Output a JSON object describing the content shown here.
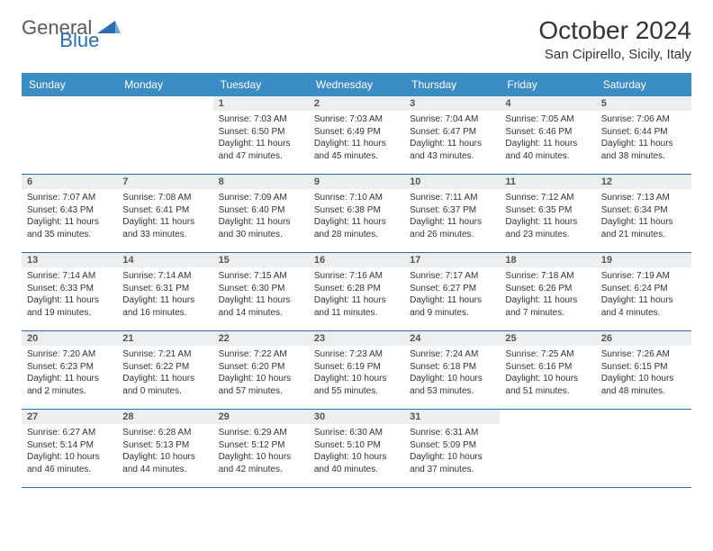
{
  "logo": {
    "text1": "General",
    "text2": "Blue"
  },
  "title": "October 2024",
  "location": "San Cipirello, Sicily, Italy",
  "colors": {
    "header_bg": "#3b8bc4",
    "header_text": "#ffffff",
    "daynum_bg": "#eceeef",
    "week_border": "#2a6db0",
    "logo_gray": "#5a5a5a",
    "logo_blue": "#2a6db0"
  },
  "day_names": [
    "Sunday",
    "Monday",
    "Tuesday",
    "Wednesday",
    "Thursday",
    "Friday",
    "Saturday"
  ],
  "weeks": [
    [
      null,
      null,
      {
        "n": "1",
        "sr": "7:03 AM",
        "ss": "6:50 PM",
        "dl": "11 hours and 47 minutes."
      },
      {
        "n": "2",
        "sr": "7:03 AM",
        "ss": "6:49 PM",
        "dl": "11 hours and 45 minutes."
      },
      {
        "n": "3",
        "sr": "7:04 AM",
        "ss": "6:47 PM",
        "dl": "11 hours and 43 minutes."
      },
      {
        "n": "4",
        "sr": "7:05 AM",
        "ss": "6:46 PM",
        "dl": "11 hours and 40 minutes."
      },
      {
        "n": "5",
        "sr": "7:06 AM",
        "ss": "6:44 PM",
        "dl": "11 hours and 38 minutes."
      }
    ],
    [
      {
        "n": "6",
        "sr": "7:07 AM",
        "ss": "6:43 PM",
        "dl": "11 hours and 35 minutes."
      },
      {
        "n": "7",
        "sr": "7:08 AM",
        "ss": "6:41 PM",
        "dl": "11 hours and 33 minutes."
      },
      {
        "n": "8",
        "sr": "7:09 AM",
        "ss": "6:40 PM",
        "dl": "11 hours and 30 minutes."
      },
      {
        "n": "9",
        "sr": "7:10 AM",
        "ss": "6:38 PM",
        "dl": "11 hours and 28 minutes."
      },
      {
        "n": "10",
        "sr": "7:11 AM",
        "ss": "6:37 PM",
        "dl": "11 hours and 26 minutes."
      },
      {
        "n": "11",
        "sr": "7:12 AM",
        "ss": "6:35 PM",
        "dl": "11 hours and 23 minutes."
      },
      {
        "n": "12",
        "sr": "7:13 AM",
        "ss": "6:34 PM",
        "dl": "11 hours and 21 minutes."
      }
    ],
    [
      {
        "n": "13",
        "sr": "7:14 AM",
        "ss": "6:33 PM",
        "dl": "11 hours and 19 minutes."
      },
      {
        "n": "14",
        "sr": "7:14 AM",
        "ss": "6:31 PM",
        "dl": "11 hours and 16 minutes."
      },
      {
        "n": "15",
        "sr": "7:15 AM",
        "ss": "6:30 PM",
        "dl": "11 hours and 14 minutes."
      },
      {
        "n": "16",
        "sr": "7:16 AM",
        "ss": "6:28 PM",
        "dl": "11 hours and 11 minutes."
      },
      {
        "n": "17",
        "sr": "7:17 AM",
        "ss": "6:27 PM",
        "dl": "11 hours and 9 minutes."
      },
      {
        "n": "18",
        "sr": "7:18 AM",
        "ss": "6:26 PM",
        "dl": "11 hours and 7 minutes."
      },
      {
        "n": "19",
        "sr": "7:19 AM",
        "ss": "6:24 PM",
        "dl": "11 hours and 4 minutes."
      }
    ],
    [
      {
        "n": "20",
        "sr": "7:20 AM",
        "ss": "6:23 PM",
        "dl": "11 hours and 2 minutes."
      },
      {
        "n": "21",
        "sr": "7:21 AM",
        "ss": "6:22 PM",
        "dl": "11 hours and 0 minutes."
      },
      {
        "n": "22",
        "sr": "7:22 AM",
        "ss": "6:20 PM",
        "dl": "10 hours and 57 minutes."
      },
      {
        "n": "23",
        "sr": "7:23 AM",
        "ss": "6:19 PM",
        "dl": "10 hours and 55 minutes."
      },
      {
        "n": "24",
        "sr": "7:24 AM",
        "ss": "6:18 PM",
        "dl": "10 hours and 53 minutes."
      },
      {
        "n": "25",
        "sr": "7:25 AM",
        "ss": "6:16 PM",
        "dl": "10 hours and 51 minutes."
      },
      {
        "n": "26",
        "sr": "7:26 AM",
        "ss": "6:15 PM",
        "dl": "10 hours and 48 minutes."
      }
    ],
    [
      {
        "n": "27",
        "sr": "6:27 AM",
        "ss": "5:14 PM",
        "dl": "10 hours and 46 minutes."
      },
      {
        "n": "28",
        "sr": "6:28 AM",
        "ss": "5:13 PM",
        "dl": "10 hours and 44 minutes."
      },
      {
        "n": "29",
        "sr": "6:29 AM",
        "ss": "5:12 PM",
        "dl": "10 hours and 42 minutes."
      },
      {
        "n": "30",
        "sr": "6:30 AM",
        "ss": "5:10 PM",
        "dl": "10 hours and 40 minutes."
      },
      {
        "n": "31",
        "sr": "6:31 AM",
        "ss": "5:09 PM",
        "dl": "10 hours and 37 minutes."
      },
      null,
      null
    ]
  ],
  "labels": {
    "sunrise": "Sunrise:",
    "sunset": "Sunset:",
    "daylight": "Daylight:"
  }
}
